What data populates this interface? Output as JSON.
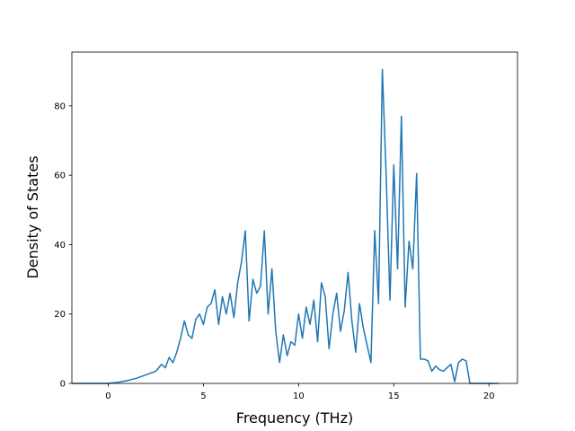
{
  "chart_data": {
    "type": "line",
    "title": "",
    "xlabel": "Frequency (THz)",
    "ylabel": "Density of States",
    "xlim": [
      -1.91,
      21.5
    ],
    "ylim": [
      0,
      95.5
    ],
    "xticks": [
      0,
      5,
      10,
      15,
      20
    ],
    "yticks": [
      0,
      20,
      40,
      60,
      80
    ],
    "grid": false,
    "legend": "none",
    "series": [
      {
        "color": "#1f77b4",
        "x": [
          -1.9,
          -1.0,
          0.0,
          0.5,
          1.0,
          1.5,
          2.0,
          2.5,
          2.8,
          3.0,
          3.2,
          3.4,
          3.6,
          3.8,
          4.0,
          4.2,
          4.4,
          4.6,
          4.8,
          5.0,
          5.2,
          5.4,
          5.6,
          5.8,
          6.0,
          6.2,
          6.4,
          6.6,
          6.8,
          7.0,
          7.2,
          7.4,
          7.6,
          7.8,
          8.0,
          8.2,
          8.4,
          8.6,
          8.8,
          9.0,
          9.2,
          9.4,
          9.6,
          9.8,
          10.0,
          10.2,
          10.4,
          10.6,
          10.8,
          11.0,
          11.2,
          11.4,
          11.6,
          11.8,
          12.0,
          12.2,
          12.4,
          12.6,
          12.8,
          13.0,
          13.2,
          13.4,
          13.6,
          13.8,
          14.0,
          14.2,
          14.4,
          14.6,
          14.8,
          15.0,
          15.2,
          15.4,
          15.6,
          15.8,
          16.0,
          16.2,
          16.4,
          16.6,
          16.8,
          17.0,
          17.2,
          17.4,
          17.6,
          17.8,
          18.0,
          18.2,
          18.4,
          18.6,
          18.8,
          19.0,
          20.5
        ],
        "values": [
          0,
          0,
          0,
          0.3,
          0.8,
          1.5,
          2.5,
          3.5,
          5.5,
          4.5,
          7.5,
          6.0,
          9.0,
          13.0,
          18.0,
          14.0,
          13.0,
          18.5,
          20.0,
          17.0,
          22.0,
          23.0,
          27.0,
          17.0,
          25.0,
          20.0,
          26.0,
          19.0,
          29.0,
          35.0,
          44.0,
          18.0,
          30.0,
          26.0,
          28.0,
          44.0,
          20.0,
          33.0,
          15.0,
          6.0,
          14.0,
          8.0,
          12.0,
          11.0,
          20.0,
          13.0,
          22.0,
          17.0,
          24.0,
          12.0,
          29.0,
          25.0,
          10.0,
          20.0,
          26.0,
          15.0,
          21.0,
          32.0,
          18.0,
          9.0,
          23.0,
          16.0,
          11.0,
          6.0,
          44.0,
          23.0,
          90.5,
          60.0,
          24.0,
          63.0,
          33.0,
          77.0,
          22.0,
          41.0,
          33.0,
          60.5,
          7.0,
          7.0,
          6.5,
          3.5,
          5.0,
          4.0,
          3.5,
          4.5,
          5.5,
          0.5,
          6.0,
          7.0,
          6.5,
          0,
          0
        ]
      }
    ]
  }
}
